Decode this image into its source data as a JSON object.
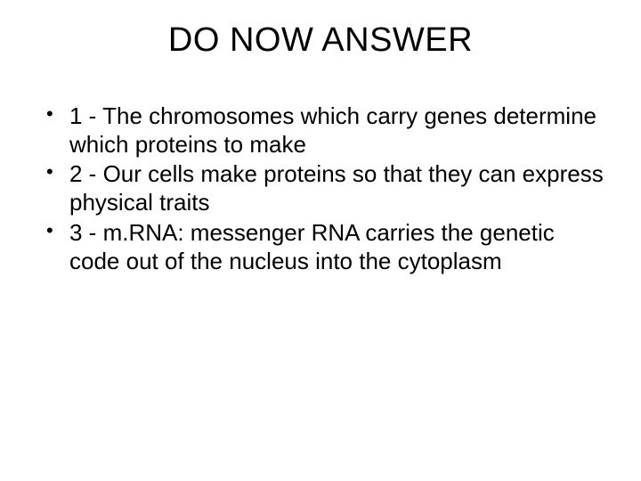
{
  "slide": {
    "title": "DO NOW ANSWER",
    "bullets": [
      "1 - The chromosomes which carry genes determine which proteins to make",
      "2 - Our cells make proteins so that they can express physical traits",
      "3 - m.RNA: messenger RNA carries the genetic code out of the nucleus into the cytoplasm"
    ],
    "colors": {
      "background": "#ffffff",
      "text": "#000000"
    },
    "typography": {
      "title_fontsize": 38,
      "body_fontsize": 26,
      "font_family": "Arial"
    }
  }
}
